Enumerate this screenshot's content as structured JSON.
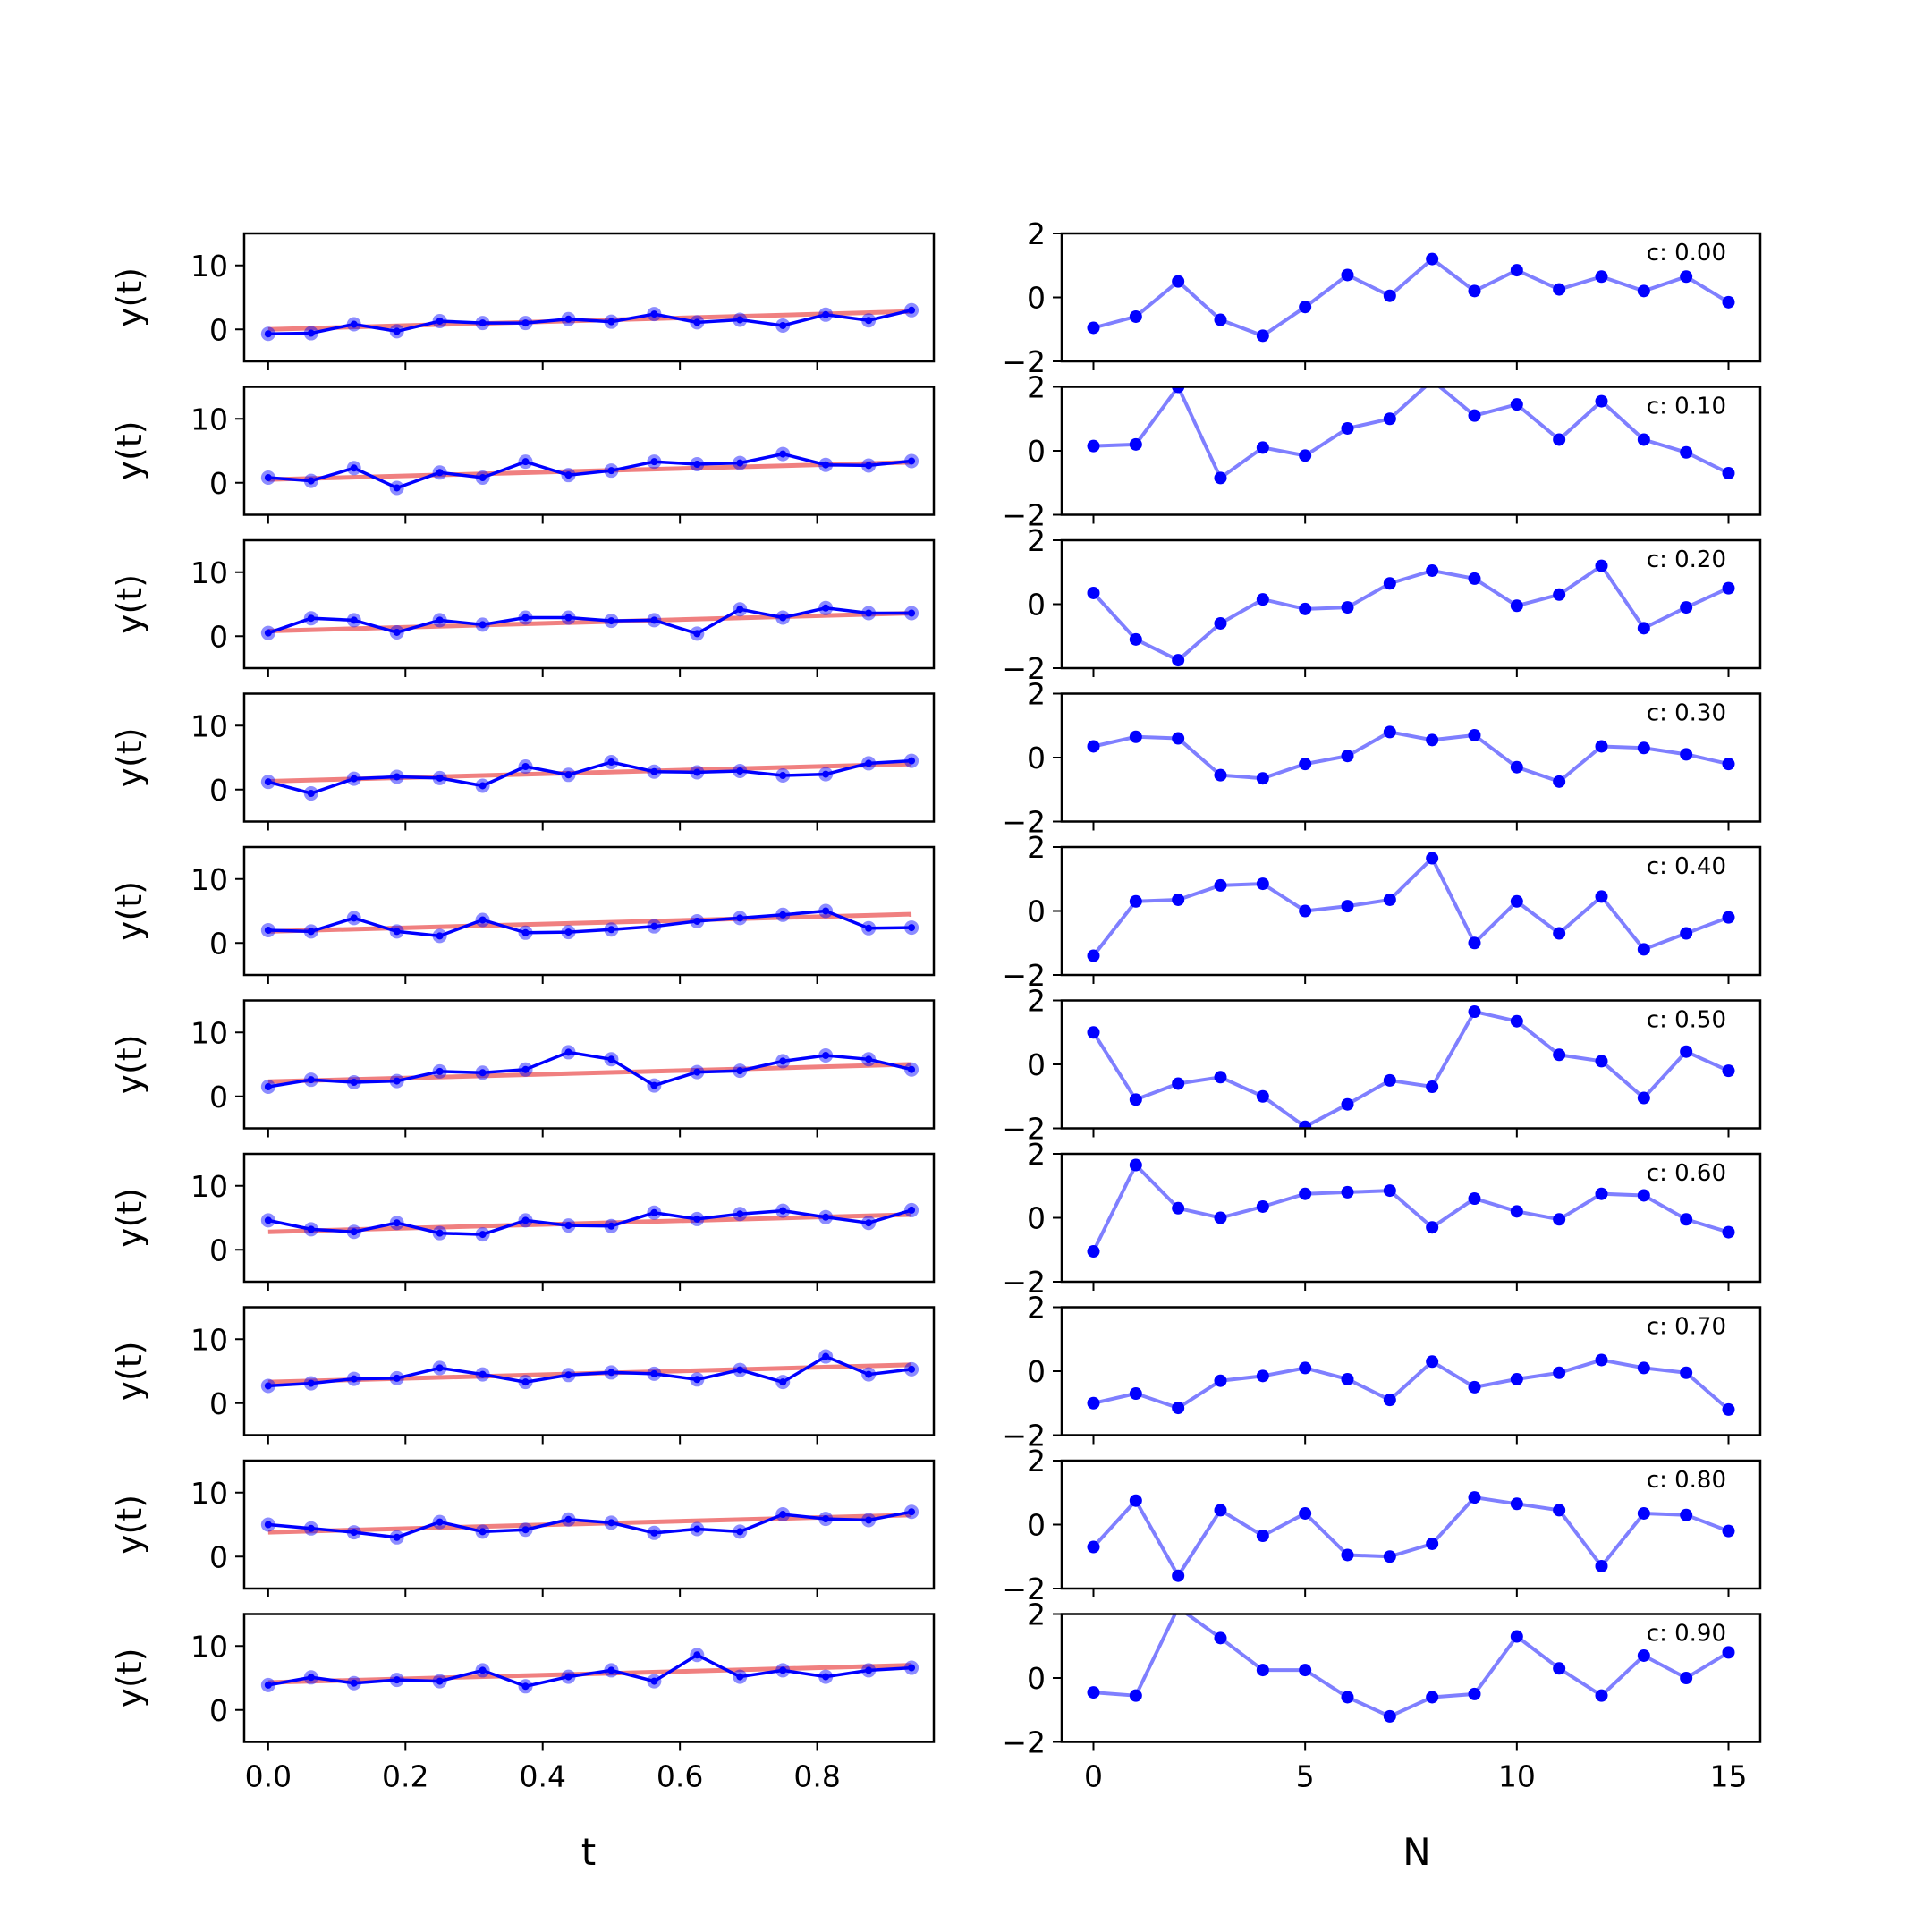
{
  "colors": {
    "data": "#0000ff",
    "fit": "#f08080",
    "resid": "#0000ff",
    "axis": "#000000",
    "background": "#ffffff"
  },
  "chart_data": [
    {
      "type": "line",
      "panel": "left",
      "title": "",
      "xlabel": "t",
      "ylabel": "y(t)",
      "xlim": [
        -0.035,
        0.97
      ],
      "ylim": [
        -5,
        15
      ],
      "xticks": [
        "0.0",
        "0.2",
        "0.4",
        "0.6",
        "0.8"
      ],
      "yticks": [
        "0",
        "10"
      ],
      "x": [
        0.0,
        0.0625,
        0.125,
        0.1875,
        0.25,
        0.3125,
        0.375,
        0.4375,
        0.5,
        0.5625,
        0.625,
        0.6875,
        0.75,
        0.8125,
        0.875,
        0.9375
      ],
      "rows": [
        {
          "fit": [
            0.0,
            2.8
          ],
          "values": [
            -0.7,
            -0.6,
            0.8,
            -0.3,
            1.3,
            1.0,
            1.0,
            1.6,
            1.2,
            2.4,
            1.1,
            1.5,
            0.6,
            2.3,
            1.4,
            3.0
          ]
        },
        {
          "fit": [
            0.5,
            3.2
          ],
          "values": [
            0.8,
            0.3,
            2.3,
            -0.8,
            1.6,
            0.8,
            3.3,
            1.2,
            1.9,
            3.3,
            2.9,
            3.1,
            4.5,
            2.8,
            2.7,
            3.4
          ]
        },
        {
          "fit": [
            0.8,
            3.6
          ],
          "values": [
            0.5,
            2.8,
            2.5,
            0.6,
            2.5,
            1.8,
            2.9,
            2.9,
            2.4,
            2.5,
            0.4,
            4.2,
            2.9,
            4.4,
            3.6,
            3.6
          ]
        },
        {
          "fit": [
            1.3,
            4.0
          ],
          "values": [
            1.2,
            -0.6,
            1.7,
            2.0,
            1.8,
            0.6,
            3.6,
            2.3,
            4.3,
            2.8,
            2.7,
            2.9,
            2.2,
            2.4,
            4.1,
            4.5
          ]
        },
        {
          "fit": [
            1.8,
            4.5
          ],
          "values": [
            2.0,
            1.8,
            3.9,
            1.8,
            1.1,
            3.6,
            1.6,
            1.7,
            2.1,
            2.6,
            3.4,
            3.9,
            4.4,
            5.0,
            2.3,
            2.4
          ]
        },
        {
          "fit": [
            2.3,
            5.0
          ],
          "values": [
            1.5,
            2.6,
            2.2,
            2.4,
            3.9,
            3.7,
            4.2,
            6.9,
            5.8,
            1.7,
            3.8,
            4.0,
            5.5,
            6.4,
            5.8,
            4.2
          ]
        },
        {
          "fit": [
            2.8,
            5.5
          ],
          "values": [
            4.6,
            3.2,
            2.8,
            4.2,
            2.6,
            2.4,
            4.6,
            3.8,
            3.7,
            5.8,
            4.8,
            5.6,
            6.1,
            5.1,
            4.2,
            6.2
          ]
        },
        {
          "fit": [
            3.3,
            6.0
          ],
          "values": [
            2.7,
            3.1,
            3.8,
            3.9,
            5.5,
            4.5,
            3.3,
            4.4,
            4.8,
            4.6,
            3.7,
            5.2,
            3.3,
            7.3,
            4.5,
            5.3
          ]
        },
        {
          "fit": [
            3.8,
            6.5
          ],
          "values": [
            5.0,
            4.4,
            3.8,
            3.0,
            5.4,
            3.9,
            4.2,
            5.8,
            5.3,
            3.7,
            4.3,
            3.9,
            6.6,
            5.9,
            5.7,
            7.0
          ]
        },
        {
          "fit": [
            4.3,
            7.0
          ],
          "values": [
            3.9,
            5.1,
            4.2,
            4.7,
            4.5,
            6.2,
            3.7,
            5.2,
            6.2,
            4.5,
            8.6,
            5.2,
            6.2,
            5.2,
            6.2,
            6.6
          ]
        }
      ]
    },
    {
      "type": "line",
      "panel": "right",
      "title": "",
      "xlabel": "N",
      "ylabel": "",
      "xlim": [
        -0.75,
        15.75
      ],
      "ylim": [
        -2,
        2
      ],
      "xticks": [
        "0",
        "5",
        "10",
        "15"
      ],
      "yticks": [
        "2",
        "0",
        "−2"
      ],
      "x": [
        0,
        1,
        2,
        3,
        4,
        5,
        6,
        7,
        8,
        9,
        10,
        11,
        12,
        13,
        14,
        15
      ],
      "rows": [
        {
          "label": "c: 0.00",
          "values": [
            -0.95,
            -0.6,
            0.5,
            -0.7,
            -1.2,
            -0.3,
            0.7,
            0.05,
            1.2,
            0.2,
            0.85,
            0.25,
            0.65,
            0.2,
            0.65,
            -0.15
          ]
        },
        {
          "label": "c: 0.10",
          "values": [
            0.15,
            0.2,
            2.0,
            -0.85,
            0.1,
            -0.15,
            0.7,
            1.0,
            2.2,
            1.1,
            1.45,
            0.35,
            1.55,
            0.35,
            -0.05,
            -0.7
          ]
        },
        {
          "label": "c: 0.20",
          "values": [
            0.35,
            -1.1,
            -1.75,
            -0.6,
            0.15,
            -0.15,
            -0.1,
            0.65,
            1.05,
            0.8,
            -0.05,
            0.3,
            1.2,
            -0.75,
            -0.1,
            0.5
          ]
        },
        {
          "label": "c: 0.30",
          "values": [
            0.35,
            0.65,
            0.6,
            -0.55,
            -0.65,
            -0.2,
            0.05,
            0.8,
            0.55,
            0.7,
            -0.3,
            -0.75,
            0.35,
            0.3,
            0.1,
            -0.2
          ]
        },
        {
          "label": "c: 0.40",
          "values": [
            -1.4,
            0.3,
            0.35,
            0.8,
            0.85,
            0.0,
            0.15,
            0.35,
            1.65,
            -1.0,
            0.3,
            -0.7,
            0.45,
            -1.2,
            -0.7,
            -0.2
          ]
        },
        {
          "label": "c: 0.50",
          "values": [
            1.0,
            -1.1,
            -0.6,
            -0.4,
            -1.0,
            -1.95,
            -1.25,
            -0.5,
            -0.7,
            1.65,
            1.35,
            0.3,
            0.1,
            -1.05,
            0.4,
            -0.2
          ]
        },
        {
          "label": "c: 0.60",
          "values": [
            -1.05,
            1.65,
            0.3,
            0.0,
            0.35,
            0.75,
            0.8,
            0.85,
            -0.3,
            0.6,
            0.2,
            -0.05,
            0.75,
            0.7,
            -0.05,
            -0.45
          ]
        },
        {
          "label": "c: 0.70",
          "values": [
            -1.0,
            -0.7,
            -1.15,
            -0.3,
            -0.15,
            0.1,
            -0.25,
            -0.9,
            0.3,
            -0.5,
            -0.25,
            -0.05,
            0.35,
            0.1,
            -0.05,
            -1.2
          ]
        },
        {
          "label": "c: 0.80",
          "values": [
            -0.7,
            0.75,
            -1.6,
            0.45,
            -0.35,
            0.35,
            -0.95,
            -1.0,
            -0.6,
            0.85,
            0.65,
            0.45,
            -1.3,
            0.35,
            0.3,
            -0.2
          ]
        },
        {
          "label": "c: 0.90",
          "values": [
            -0.45,
            -0.55,
            2.2,
            1.25,
            0.25,
            0.25,
            -0.6,
            -1.2,
            -0.6,
            -0.5,
            1.3,
            0.3,
            -0.55,
            0.7,
            0.0,
            0.8
          ]
        }
      ]
    }
  ]
}
